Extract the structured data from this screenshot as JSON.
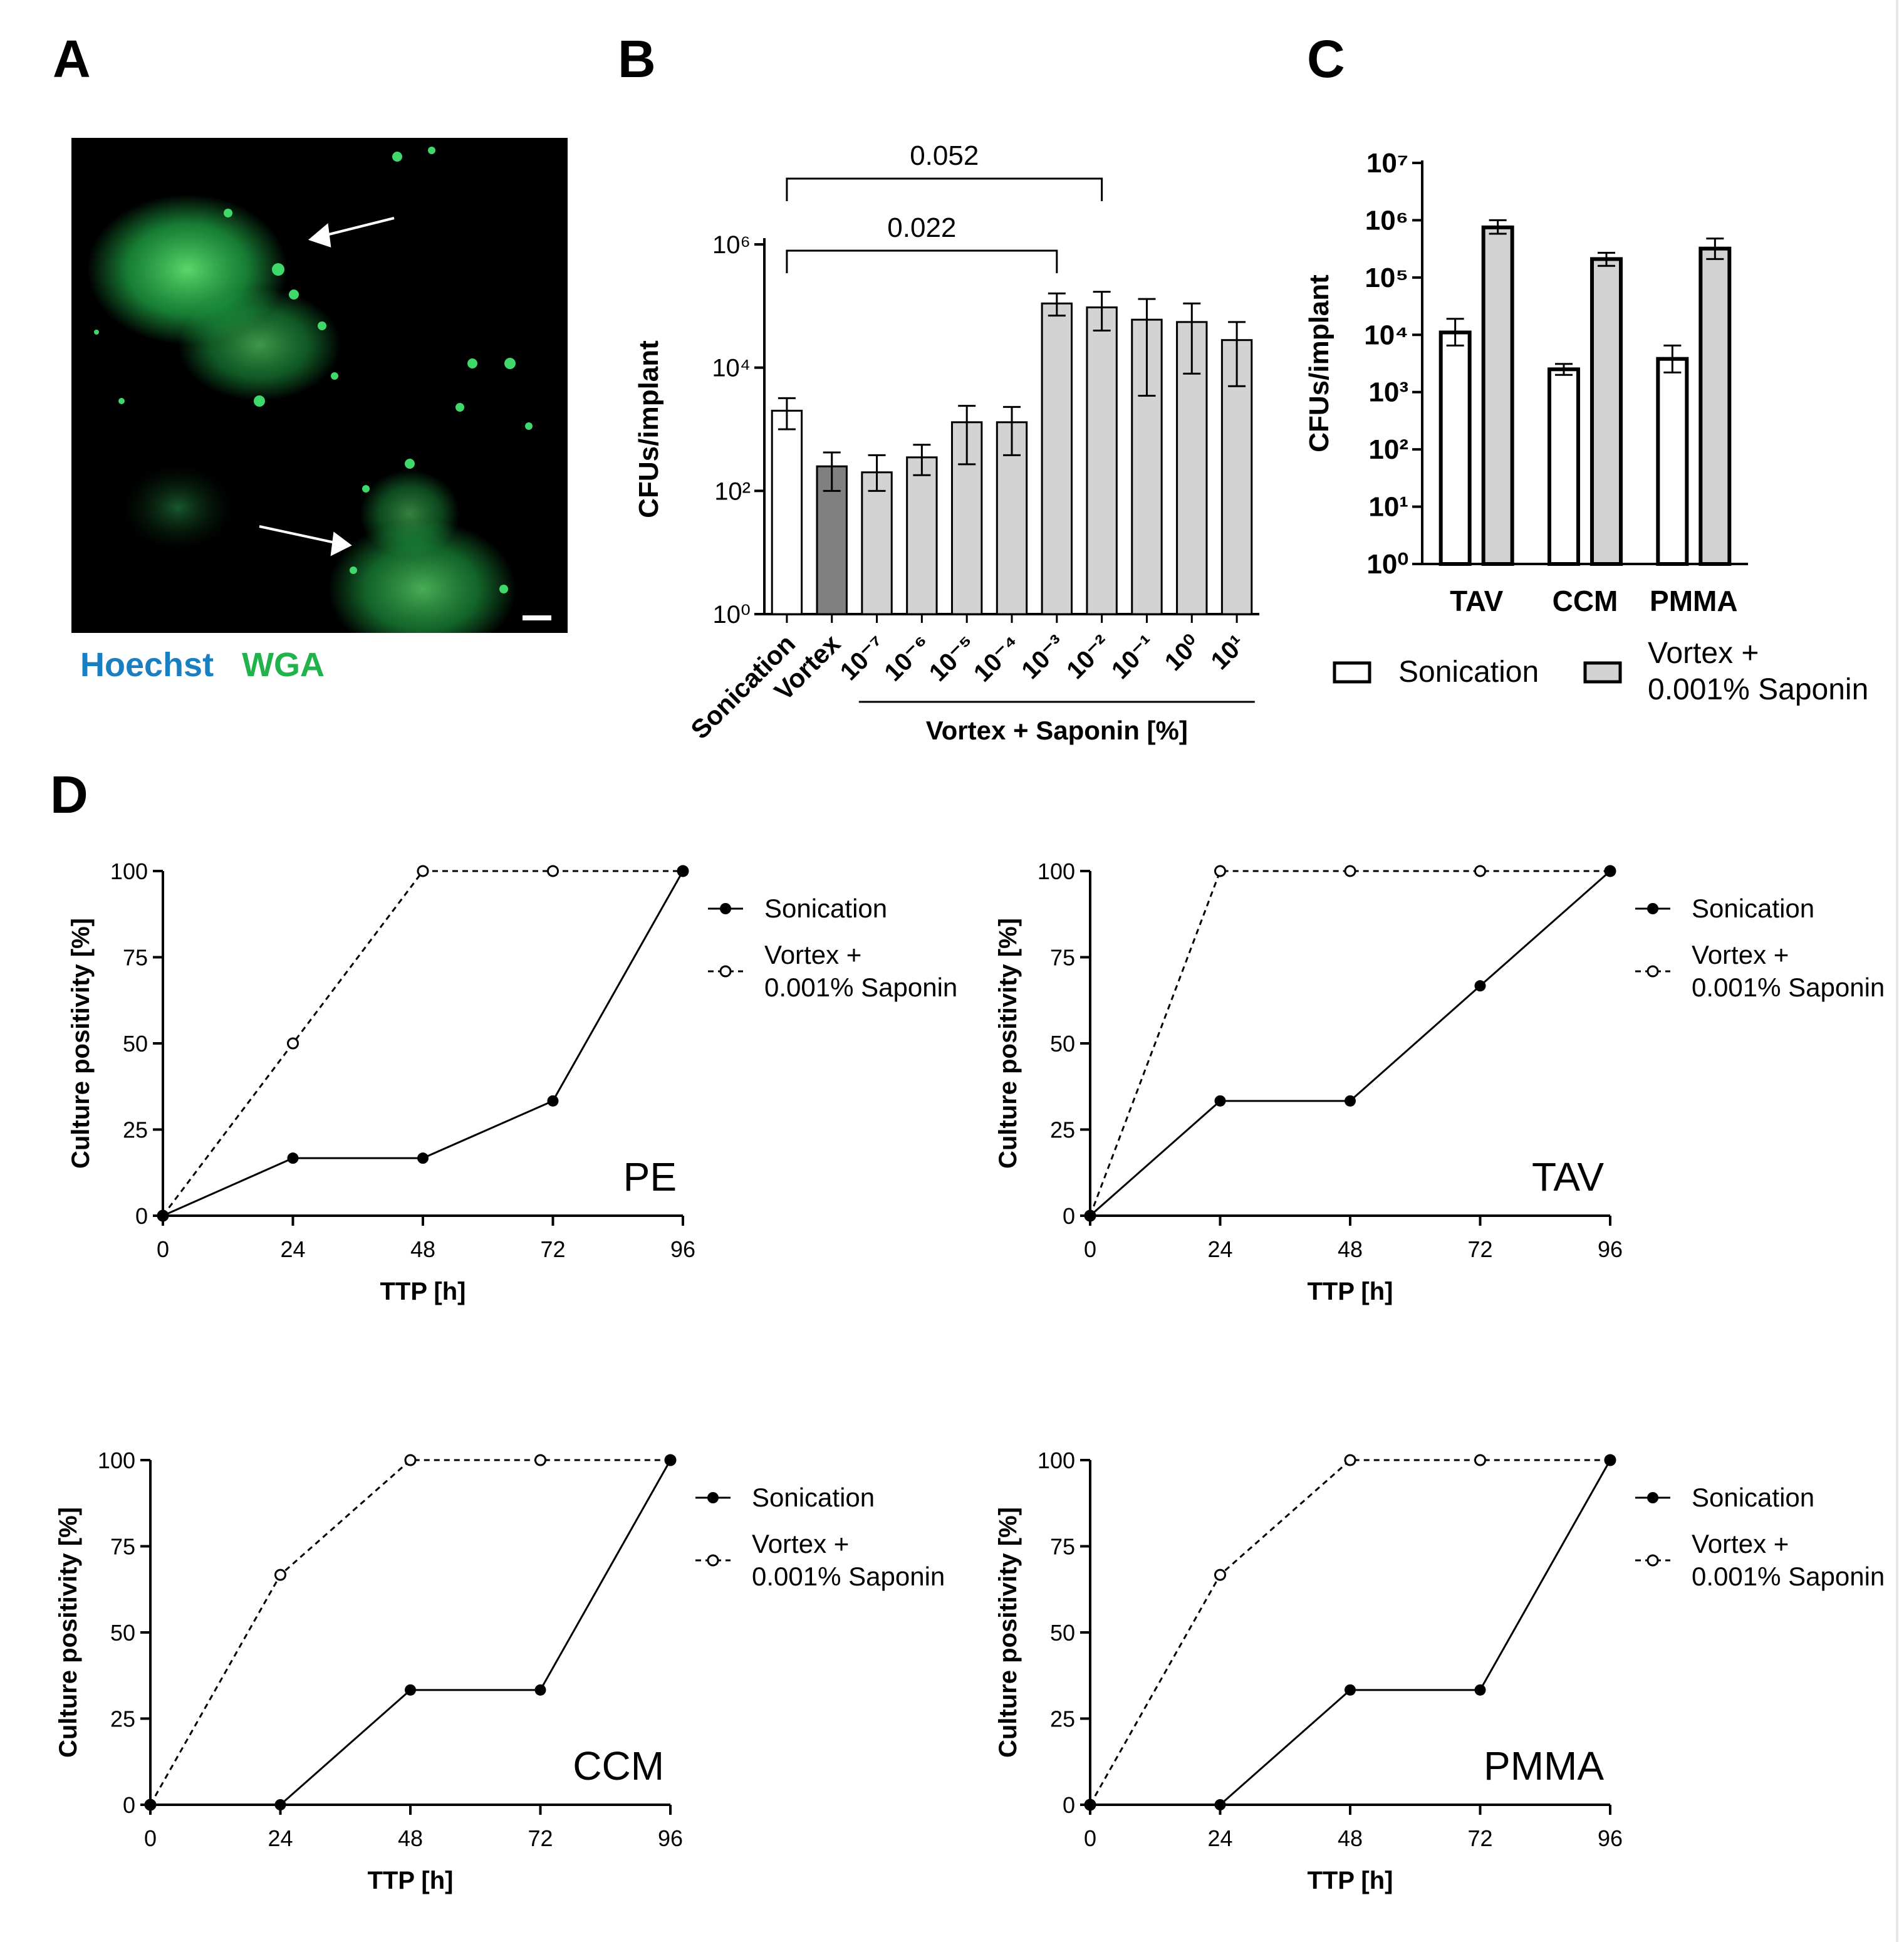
{
  "panel_labels": {
    "a": "A",
    "b": "B",
    "c": "C",
    "d": "D"
  },
  "panel_a": {
    "legend_hoechst": "Hoechst",
    "legend_wga": "WGA",
    "hoechst_color": "#1a7fc1",
    "wga_color": "#21b24b"
  },
  "chart_data": [
    {
      "panel": "B",
      "type": "bar",
      "ylabel": "CFUs/implant",
      "yscale": "log",
      "ylim": [
        1,
        1000000
      ],
      "yticks": [
        "10⁰",
        "10²",
        "10⁴",
        "10⁶"
      ],
      "categories": [
        "Sonication",
        "Vortex",
        "10⁻⁷",
        "10⁻⁶",
        "10⁻⁵",
        "10⁻⁴",
        "10⁻³",
        "10⁻²",
        "10⁻¹",
        "10⁰",
        "10¹"
      ],
      "values": [
        2000,
        250,
        200,
        350,
        1300,
        1300,
        110000,
        95000,
        60000,
        55000,
        28000
      ],
      "err_low": [
        1000,
        100,
        100,
        180,
        270,
        380,
        70000,
        40000,
        3500,
        8000,
        5000
      ],
      "err_high": [
        3200,
        420,
        380,
        560,
        2400,
        2300,
        160000,
        170000,
        130000,
        110000,
        55000
      ],
      "bar_colors": [
        "#ffffff",
        "#808080",
        "#d3d3d3",
        "#d3d3d3",
        "#d3d3d3",
        "#d3d3d3",
        "#d3d3d3",
        "#d3d3d3",
        "#d3d3d3",
        "#d3d3d3",
        "#d3d3d3"
      ],
      "group_label": "Vortex + Saponin [%]",
      "annotations": [
        {
          "from": 0,
          "to": 6,
          "text": "0.022"
        },
        {
          "from": 0,
          "to": 7,
          "text": "0.052"
        }
      ]
    },
    {
      "panel": "C",
      "type": "bar",
      "ylabel": "CFUs/implant",
      "yscale": "log",
      "ylim": [
        1,
        10000000
      ],
      "yticks": [
        "10⁰",
        "10¹",
        "10²",
        "10³",
        "10⁴",
        "10⁵",
        "10⁶",
        "10⁷"
      ],
      "categories": [
        "TAV",
        "CCM",
        "PMMA"
      ],
      "series": [
        {
          "name": "Sonication",
          "values": [
            11000,
            2500,
            3800
          ],
          "err_low": [
            6500,
            2000,
            2200
          ],
          "err_high": [
            19000,
            3100,
            6500
          ],
          "color": "#ffffff"
        },
        {
          "name": "Vortex + 0.001% Saponin",
          "values": [
            750000,
            210000,
            320000
          ],
          "err_low": [
            580000,
            160000,
            210000
          ],
          "err_high": [
            1000000,
            270000,
            480000
          ],
          "color": "#d3d3d3"
        }
      ],
      "legend": [
        "Sonication",
        "Vortex +",
        "0.001% Saponin"
      ]
    },
    {
      "panel": "D-PE",
      "type": "line",
      "title": "PE",
      "xlabel": "TTP [h]",
      "ylabel": "Culture positivity [%]",
      "x": [
        0,
        24,
        48,
        72,
        96
      ],
      "xlim": [
        0,
        96
      ],
      "ylim": [
        0,
        100
      ],
      "series": [
        {
          "name": "Sonication",
          "values": [
            0,
            16.7,
            16.7,
            33.3,
            100
          ]
        },
        {
          "name": "Vortex + 0.001% Saponin",
          "values": [
            0,
            50,
            100,
            100,
            100
          ]
        }
      ]
    },
    {
      "panel": "D-TAV",
      "type": "line",
      "title": "TAV",
      "xlabel": "TTP [h]",
      "ylabel": "Culture positivity [%]",
      "x": [
        0,
        24,
        48,
        72,
        96
      ],
      "xlim": [
        0,
        96
      ],
      "ylim": [
        0,
        100
      ],
      "series": [
        {
          "name": "Sonication",
          "values": [
            0,
            33.3,
            33.3,
            66.7,
            100
          ]
        },
        {
          "name": "Vortex + 0.001% Saponin",
          "values": [
            0,
            100,
            100,
            100,
            100
          ]
        }
      ]
    },
    {
      "panel": "D-CCM",
      "type": "line",
      "title": "CCM",
      "xlabel": "TTP [h]",
      "ylabel": "Culture positivity [%]",
      "x": [
        0,
        24,
        48,
        72,
        96
      ],
      "xlim": [
        0,
        96
      ],
      "ylim": [
        0,
        100
      ],
      "series": [
        {
          "name": "Sonication",
          "values": [
            0,
            0,
            33.3,
            33.3,
            100
          ]
        },
        {
          "name": "Vortex + 0.001% Saponin",
          "values": [
            0,
            66.7,
            100,
            100,
            100
          ]
        }
      ]
    },
    {
      "panel": "D-PMMA",
      "type": "line",
      "title": "PMMA",
      "xlabel": "TTP [h]",
      "ylabel": "Culture positivity [%]",
      "x": [
        0,
        24,
        48,
        72,
        96
      ],
      "xlim": [
        0,
        96
      ],
      "ylim": [
        0,
        100
      ],
      "series": [
        {
          "name": "Sonication",
          "values": [
            0,
            0,
            33.3,
            33.3,
            100
          ]
        },
        {
          "name": "Vortex + 0.001% Saponin",
          "values": [
            0,
            66.7,
            100,
            100,
            100
          ]
        }
      ]
    }
  ],
  "line_legend": {
    "sonication": "Sonication",
    "vortex_1": "Vortex +",
    "vortex_2": "0.001% Saponin"
  },
  "line_ticks": {
    "x": [
      "0",
      "24",
      "48",
      "72",
      "96"
    ],
    "y": [
      "0",
      "25",
      "50",
      "75",
      "100"
    ]
  }
}
